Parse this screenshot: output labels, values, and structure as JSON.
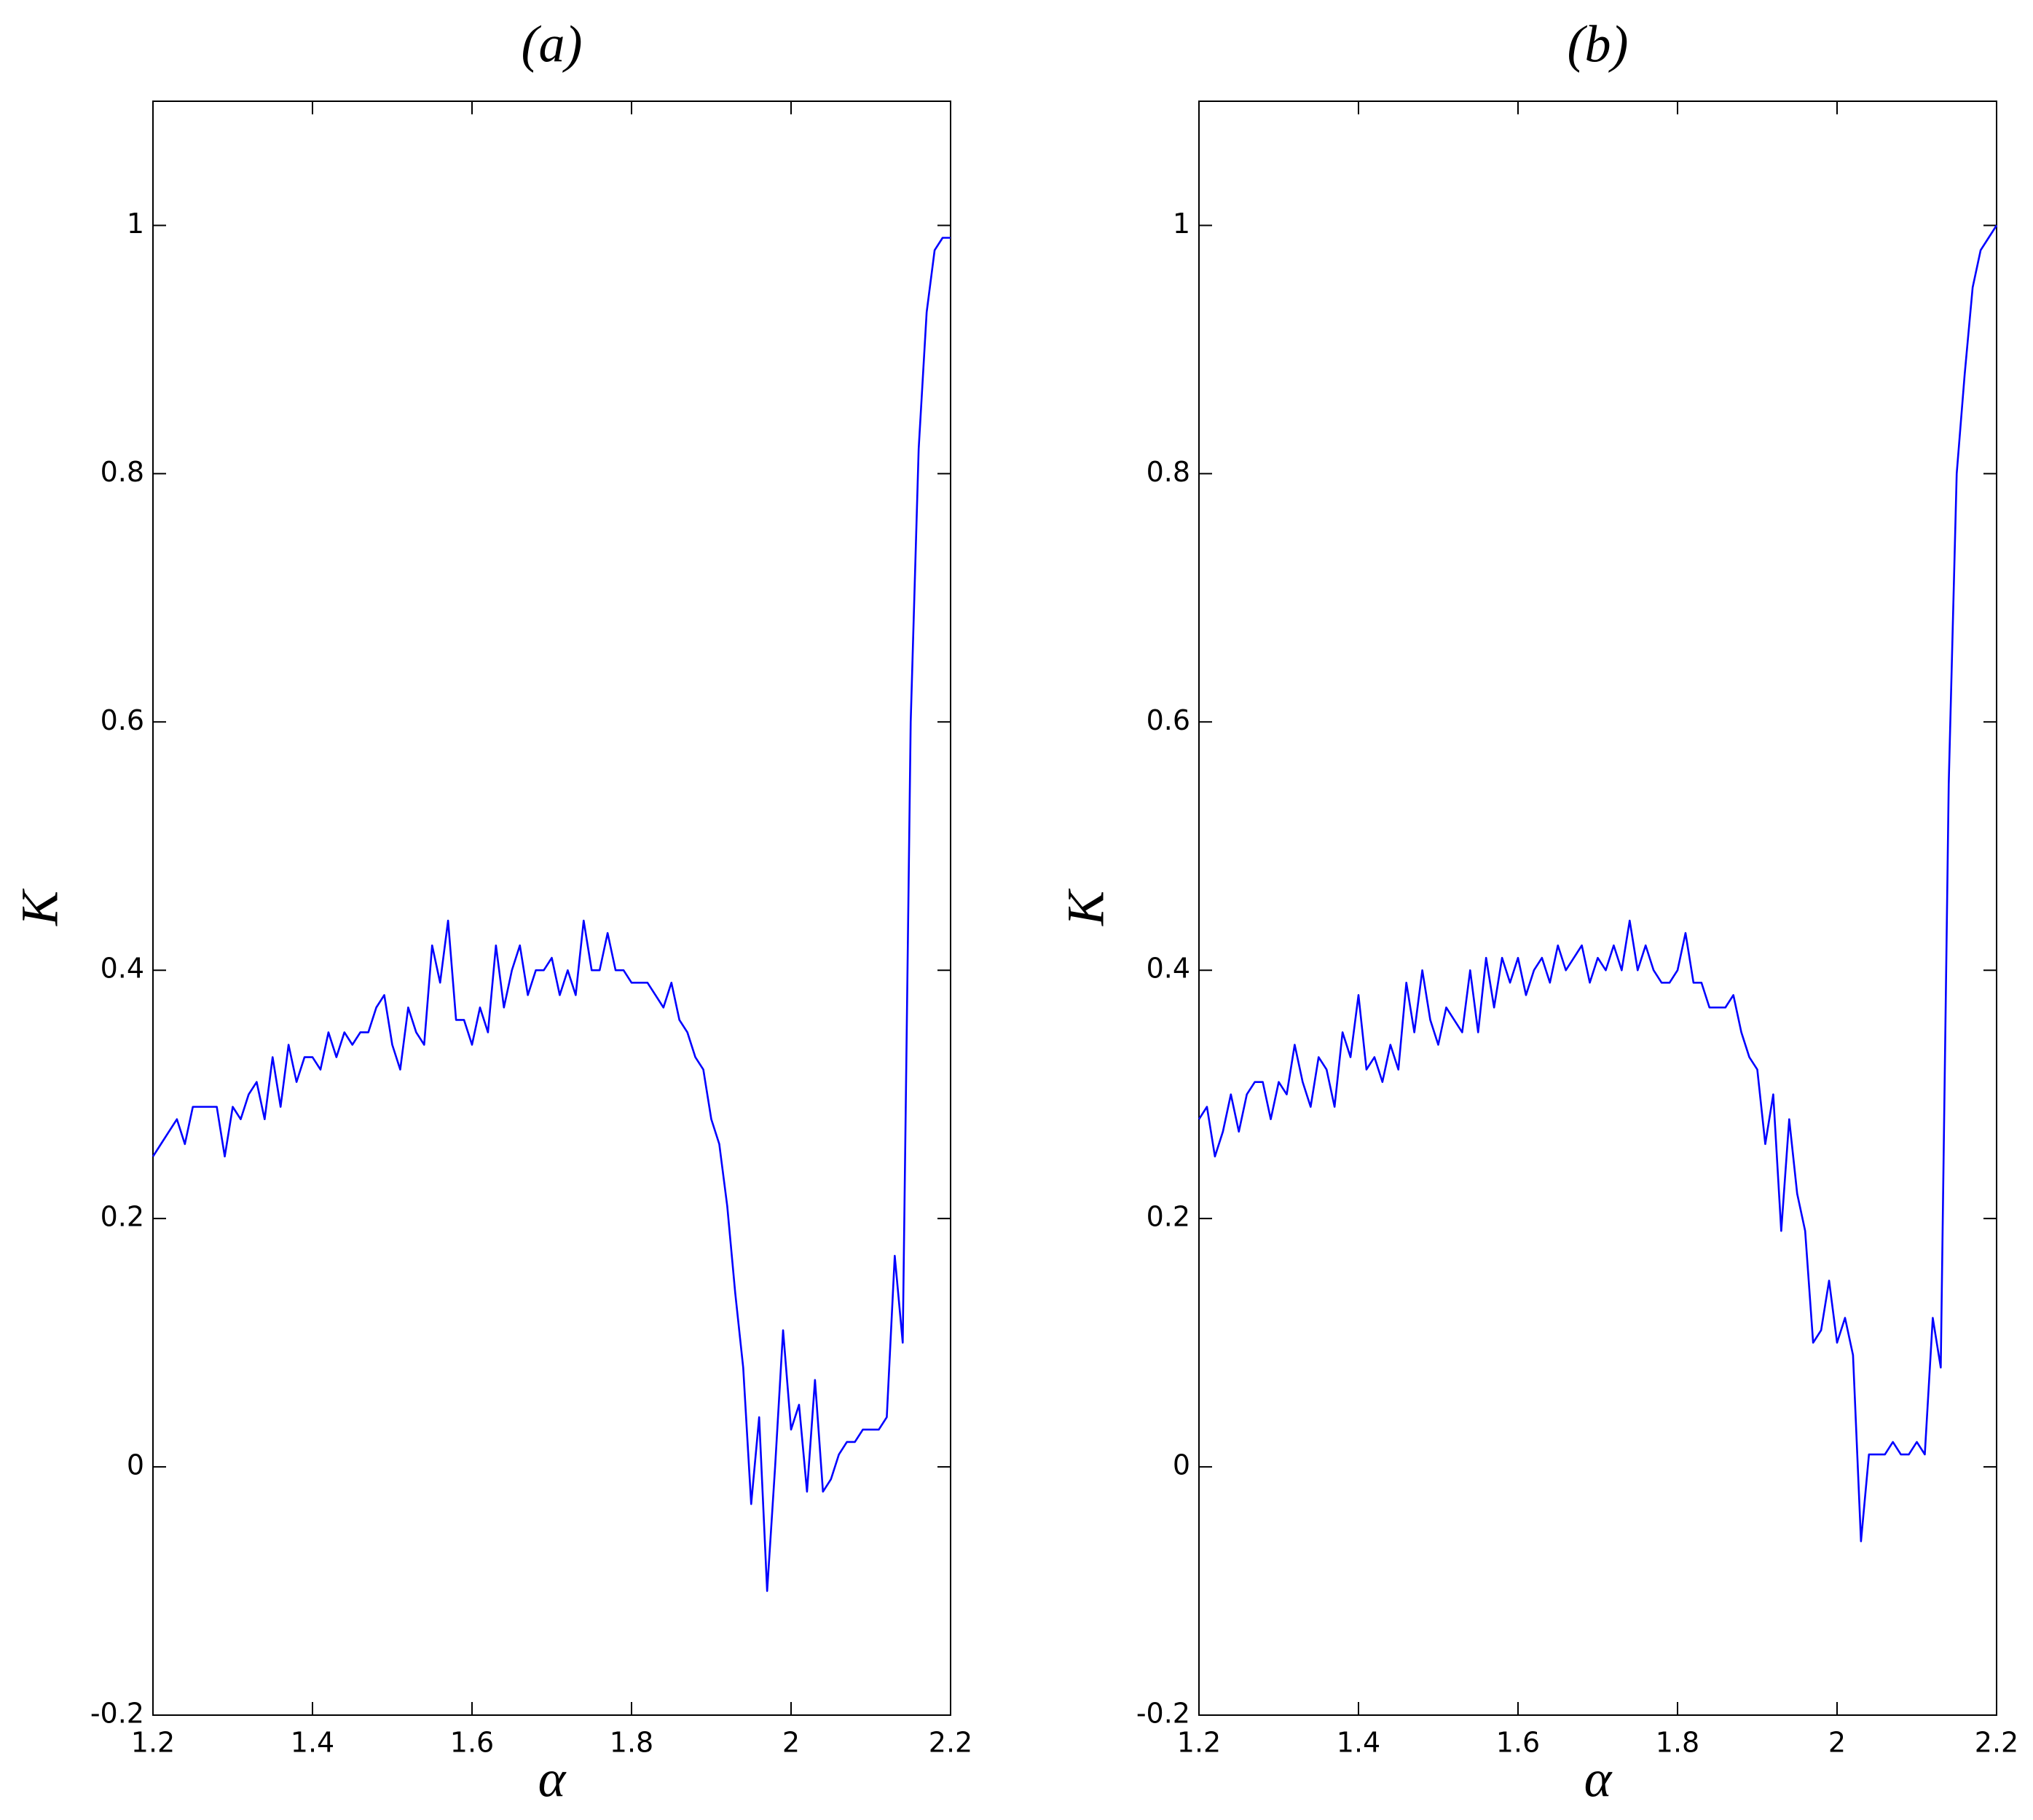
{
  "chart_data": [
    {
      "type": "line",
      "title": "(a)",
      "x_label": "α",
      "y_label": "K",
      "x": [
        1.2,
        1.21,
        1.22,
        1.23,
        1.24,
        1.25,
        1.26,
        1.27,
        1.28,
        1.29,
        1.3,
        1.31,
        1.32,
        1.33,
        1.34,
        1.35,
        1.36,
        1.37,
        1.38,
        1.39,
        1.4,
        1.41,
        1.42,
        1.43,
        1.44,
        1.45,
        1.46,
        1.47,
        1.48,
        1.49,
        1.5,
        1.51,
        1.52,
        1.53,
        1.54,
        1.55,
        1.56,
        1.57,
        1.58,
        1.59,
        1.6,
        1.61,
        1.62,
        1.63,
        1.64,
        1.65,
        1.66,
        1.67,
        1.68,
        1.69,
        1.7,
        1.71,
        1.72,
        1.73,
        1.74,
        1.75,
        1.76,
        1.77,
        1.78,
        1.79,
        1.8,
        1.81,
        1.82,
        1.83,
        1.84,
        1.85,
        1.86,
        1.87,
        1.88,
        1.89,
        1.9,
        1.91,
        1.92,
        1.93,
        1.94,
        1.95,
        1.96,
        1.97,
        1.98,
        1.99,
        2.0,
        2.01,
        2.02,
        2.03,
        2.04,
        2.05,
        2.06,
        2.07,
        2.08,
        2.09,
        2.1,
        2.11,
        2.12,
        2.13,
        2.14,
        2.15,
        2.16,
        2.17,
        2.18,
        2.19,
        2.2
      ],
      "series": [
        {
          "color": "#0000ff",
          "values": [
            0.25,
            0.26,
            0.27,
            0.28,
            0.26,
            0.29,
            0.29,
            0.29,
            0.29,
            0.25,
            0.29,
            0.28,
            0.3,
            0.31,
            0.28,
            0.33,
            0.29,
            0.34,
            0.31,
            0.33,
            0.33,
            0.32,
            0.35,
            0.33,
            0.35,
            0.34,
            0.35,
            0.35,
            0.37,
            0.38,
            0.34,
            0.32,
            0.37,
            0.35,
            0.34,
            0.42,
            0.39,
            0.44,
            0.36,
            0.36,
            0.34,
            0.37,
            0.35,
            0.42,
            0.37,
            0.4,
            0.42,
            0.38,
            0.4,
            0.4,
            0.41,
            0.38,
            0.4,
            0.38,
            0.44,
            0.4,
            0.4,
            0.43,
            0.4,
            0.4,
            0.39,
            0.39,
            0.39,
            0.38,
            0.37,
            0.39,
            0.36,
            0.35,
            0.33,
            0.32,
            0.28,
            0.26,
            0.21,
            0.14,
            0.08,
            -0.03,
            0.04,
            -0.1,
            0.0,
            0.11,
            0.03,
            0.05,
            -0.02,
            0.07,
            -0.02,
            -0.01,
            0.01,
            0.02,
            0.02,
            0.03,
            0.03,
            0.03,
            0.04,
            0.17,
            0.1,
            0.6,
            0.82,
            0.93,
            0.98,
            0.99,
            0.99
          ]
        }
      ],
      "xlim": [
        1.2,
        2.2
      ],
      "ylim": [
        -0.2,
        1.1
      ],
      "xticks": [
        1.2,
        1.4,
        1.6,
        1.8,
        2,
        2.2
      ],
      "yticks": [
        -0.2,
        0,
        0.2,
        0.4,
        0.6,
        0.8,
        1
      ],
      "grid": false
    },
    {
      "type": "line",
      "title": "(b)",
      "x_label": "α",
      "y_label": "K",
      "x": [
        1.2,
        1.21,
        1.22,
        1.23,
        1.24,
        1.25,
        1.26,
        1.27,
        1.28,
        1.29,
        1.3,
        1.31,
        1.32,
        1.33,
        1.34,
        1.35,
        1.36,
        1.37,
        1.38,
        1.39,
        1.4,
        1.41,
        1.42,
        1.43,
        1.44,
        1.45,
        1.46,
        1.47,
        1.48,
        1.49,
        1.5,
        1.51,
        1.52,
        1.53,
        1.54,
        1.55,
        1.56,
        1.57,
        1.58,
        1.59,
        1.6,
        1.61,
        1.62,
        1.63,
        1.64,
        1.65,
        1.66,
        1.67,
        1.68,
        1.69,
        1.7,
        1.71,
        1.72,
        1.73,
        1.74,
        1.75,
        1.76,
        1.77,
        1.78,
        1.79,
        1.8,
        1.81,
        1.82,
        1.83,
        1.84,
        1.85,
        1.86,
        1.87,
        1.88,
        1.89,
        1.9,
        1.91,
        1.92,
        1.93,
        1.94,
        1.95,
        1.96,
        1.97,
        1.98,
        1.99,
        2.0,
        2.01,
        2.02,
        2.03,
        2.04,
        2.05,
        2.06,
        2.07,
        2.08,
        2.09,
        2.1,
        2.11,
        2.12,
        2.13,
        2.14,
        2.15,
        2.16,
        2.17,
        2.18,
        2.19,
        2.2
      ],
      "series": [
        {
          "color": "#0000ff",
          "values": [
            0.28,
            0.29,
            0.25,
            0.27,
            0.3,
            0.27,
            0.3,
            0.31,
            0.31,
            0.28,
            0.31,
            0.3,
            0.34,
            0.31,
            0.29,
            0.33,
            0.32,
            0.29,
            0.35,
            0.33,
            0.38,
            0.32,
            0.33,
            0.31,
            0.34,
            0.32,
            0.39,
            0.35,
            0.4,
            0.36,
            0.34,
            0.37,
            0.36,
            0.35,
            0.4,
            0.35,
            0.41,
            0.37,
            0.41,
            0.39,
            0.41,
            0.38,
            0.4,
            0.41,
            0.39,
            0.42,
            0.4,
            0.41,
            0.42,
            0.39,
            0.41,
            0.4,
            0.42,
            0.4,
            0.44,
            0.4,
            0.42,
            0.4,
            0.39,
            0.39,
            0.4,
            0.43,
            0.39,
            0.39,
            0.37,
            0.37,
            0.37,
            0.38,
            0.35,
            0.33,
            0.32,
            0.26,
            0.3,
            0.19,
            0.28,
            0.22,
            0.19,
            0.1,
            0.11,
            0.15,
            0.1,
            0.12,
            0.09,
            -0.06,
            0.01,
            0.01,
            0.01,
            0.02,
            0.01,
            0.01,
            0.02,
            0.01,
            0.12,
            0.08,
            0.55,
            0.8,
            0.88,
            0.95,
            0.98,
            0.99,
            1.0
          ]
        }
      ],
      "xlim": [
        1.2,
        2.2
      ],
      "ylim": [
        -0.2,
        1.1
      ],
      "xticks": [
        1.2,
        1.4,
        1.6,
        1.8,
        2,
        2.2
      ],
      "yticks": [
        -0.2,
        0,
        0.2,
        0.4,
        0.6,
        0.8,
        1
      ],
      "grid": false
    }
  ]
}
